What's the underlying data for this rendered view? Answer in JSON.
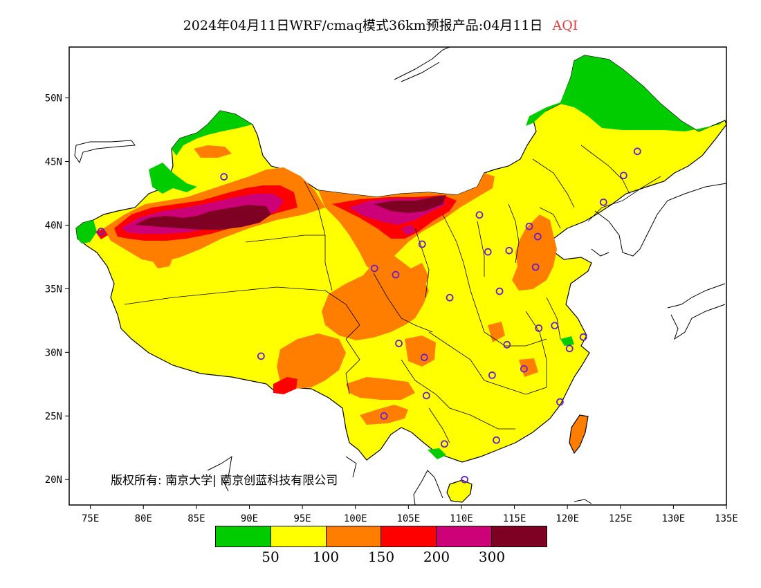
{
  "title": {
    "main": "2024年04月11日WRF/cmaq模式36km预报产品:04月11日",
    "variable": "AQI"
  },
  "map": {
    "lon_ticks": [
      "75E",
      "80E",
      "85E",
      "90E",
      "95E",
      "100E",
      "105E",
      "110E",
      "115E",
      "120E",
      "125E",
      "130E",
      "135E"
    ],
    "lat_ticks": [
      "20N",
      "25N",
      "30N",
      "35N",
      "40N",
      "45N",
      "50N"
    ],
    "lon_range": [
      73,
      135
    ],
    "lat_range": [
      18,
      54
    ],
    "stations": [
      {
        "lon": 87.6,
        "lat": 43.8
      },
      {
        "lon": 76.0,
        "lat": 39.5
      },
      {
        "lon": 91.1,
        "lat": 29.7
      },
      {
        "lon": 101.8,
        "lat": 36.6
      },
      {
        "lon": 103.8,
        "lat": 36.1
      },
      {
        "lon": 106.3,
        "lat": 38.5
      },
      {
        "lon": 111.7,
        "lat": 40.8
      },
      {
        "lon": 108.9,
        "lat": 34.3
      },
      {
        "lon": 112.5,
        "lat": 37.9
      },
      {
        "lon": 114.5,
        "lat": 38.0
      },
      {
        "lon": 116.4,
        "lat": 39.9
      },
      {
        "lon": 117.2,
        "lat": 39.1
      },
      {
        "lon": 117.0,
        "lat": 36.7
      },
      {
        "lon": 113.6,
        "lat": 34.8
      },
      {
        "lon": 117.3,
        "lat": 31.9
      },
      {
        "lon": 114.3,
        "lat": 30.6
      },
      {
        "lon": 118.8,
        "lat": 32.1
      },
      {
        "lon": 121.5,
        "lat": 31.2
      },
      {
        "lon": 120.2,
        "lat": 30.3
      },
      {
        "lon": 115.9,
        "lat": 28.7
      },
      {
        "lon": 112.9,
        "lat": 28.2
      },
      {
        "lon": 119.3,
        "lat": 26.1
      },
      {
        "lon": 113.3,
        "lat": 23.1
      },
      {
        "lon": 108.4,
        "lat": 22.8
      },
      {
        "lon": 110.3,
        "lat": 20.0
      },
      {
        "lon": 106.7,
        "lat": 26.6
      },
      {
        "lon": 102.7,
        "lat": 25.0
      },
      {
        "lon": 104.1,
        "lat": 30.7
      },
      {
        "lon": 106.5,
        "lat": 29.6
      },
      {
        "lon": 123.4,
        "lat": 41.8
      },
      {
        "lon": 125.3,
        "lat": 43.9
      },
      {
        "lon": 126.6,
        "lat": 45.8
      }
    ]
  },
  "copyright": "版权所有: 南京大学| 南京创蓝科技有限公司",
  "legend": {
    "colors": [
      "#00cc00",
      "#ffff00",
      "#ff7e00",
      "#ff0000",
      "#cc0077",
      "#7e0023"
    ],
    "labels": [
      "50",
      "100",
      "150",
      "200",
      "300"
    ]
  },
  "colors": {
    "good": "#00cc00",
    "moderate": "#ffff00",
    "usg": "#ff7e00",
    "unhealthy": "#ff0000",
    "very_unhealthy": "#cc0077",
    "hazardous": "#7e0023",
    "station": "#6a1bd6",
    "title_accent": "#e83b3b"
  }
}
